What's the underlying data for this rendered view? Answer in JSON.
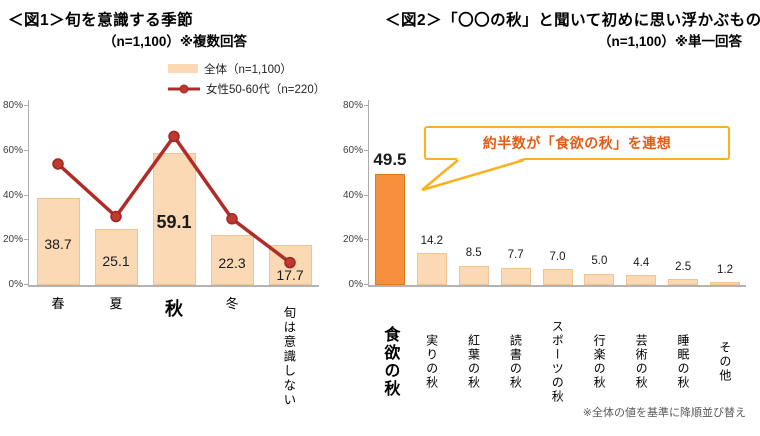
{
  "fig1": {
    "title": "＜図1＞旬を意識する季節",
    "subtitle": "（n=1,100）※複数回答",
    "legend": [
      {
        "label": "全体（n=1,100）",
        "swatch": "bar-swatch"
      },
      {
        "label": "女性50-60代（n=220）",
        "swatch": "line-marker-swatch"
      }
    ]
  },
  "fig2": {
    "title": "＜図2＞「〇〇の秋」と聞いて初めに思い浮かぶもの",
    "subtitle": "（n=1,100）※単一回答",
    "callout": "約半数が「食欲の秋」を連想",
    "footnote": "※全体の値を基準に降順並び替え"
  },
  "chart_data": [
    {
      "type": "bar",
      "title": "旬を意識する季節（n=1,100）※複数回答",
      "categories": [
        "春",
        "夏",
        "秋",
        "冬",
        "旬は意識しない"
      ],
      "series": [
        {
          "name": "全体（n=1,100）",
          "type": "bar",
          "values": [
            38.7,
            25.1,
            59.1,
            22.3,
            17.7
          ]
        },
        {
          "name": "女性50-60代（n=220）",
          "type": "line",
          "values": [
            54.1,
            30.6,
            66.4,
            29.6,
            10.0
          ],
          "note": "values estimated from plot, not labeled"
        }
      ],
      "ylim": [
        0,
        80
      ],
      "yticks": [
        0,
        20,
        40,
        60,
        80
      ],
      "ytick_labels": [
        "0%",
        "20%",
        "40%",
        "60%",
        "80%"
      ],
      "grid": false,
      "legend_position": "top",
      "emphasized_category": "秋"
    },
    {
      "type": "bar",
      "title": "「〇〇の秋」と聞いて初めに思い浮かぶもの（n=1,100）※単一回答",
      "categories": [
        "食欲の秋",
        "実りの秋",
        "紅葉の秋",
        "読書の秋",
        "スポーツの秋",
        "行楽の秋",
        "芸術の秋",
        "睡眠の秋",
        "その他"
      ],
      "values": [
        49.5,
        14.2,
        8.5,
        7.7,
        7.0,
        5.0,
        4.4,
        2.5,
        1.2
      ],
      "ylim": [
        0,
        80
      ],
      "yticks": [
        0,
        20,
        40,
        60,
        80
      ],
      "ytick_labels": [
        "0%",
        "20%",
        "40%",
        "60%",
        "80%"
      ],
      "grid": false,
      "annotation": "約半数が「食欲の秋」を連想",
      "footnote": "※全体の値を基準に降順並び替え",
      "emphasized_category": "食欲の秋"
    }
  ],
  "colors": {
    "bar_light": "#FBD9B5",
    "bar_light_border": "#F2C293",
    "bar_dark": "#F5913C",
    "bar_dark_border": "#E67817",
    "line": "#B02C28",
    "line_marker_fill": "#BE3A30",
    "line_marker_stroke": "#9E2622",
    "callout_border": "#FDB11F",
    "callout_text": "#E55C16",
    "axis": "#ABABAB",
    "footnote_text": "#595959"
  }
}
